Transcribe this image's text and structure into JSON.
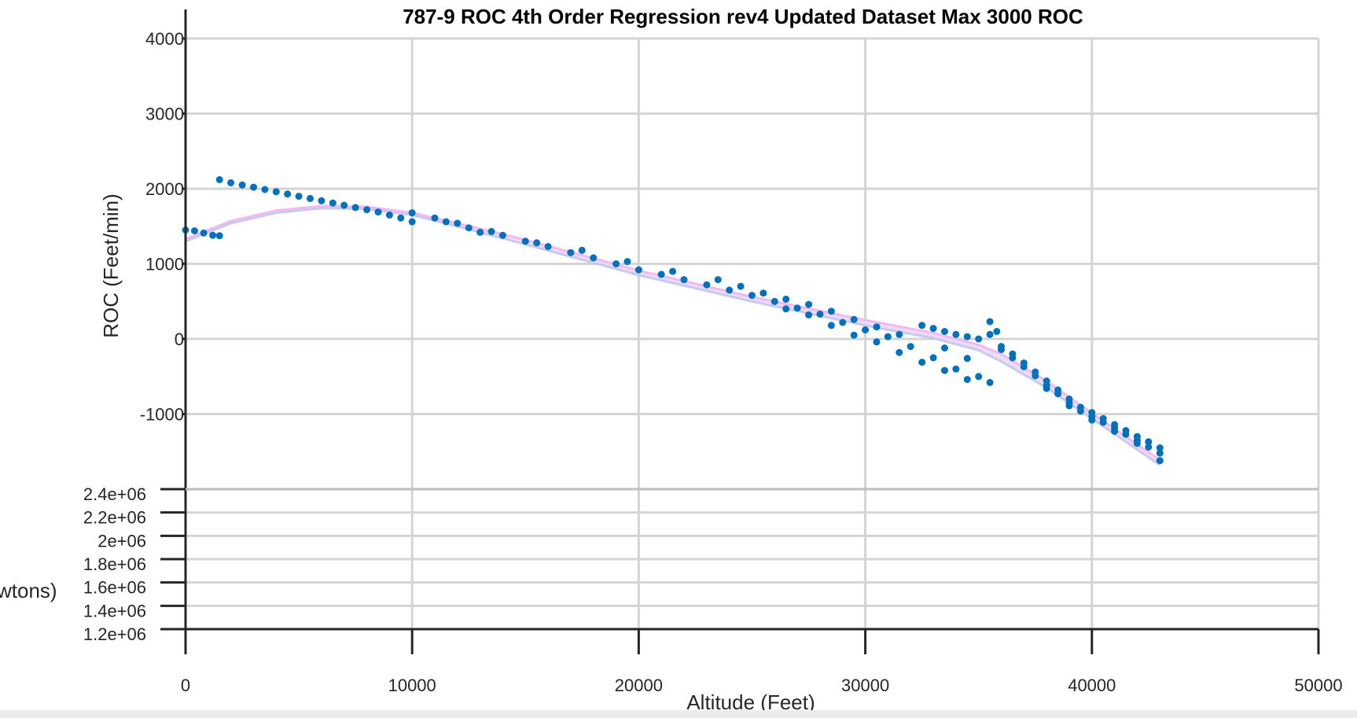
{
  "chart_data": {
    "type": "scatter",
    "title": "787-9 ROC 4th Order Regression rev4 Updated Dataset Max 3000 ROC",
    "xlabel": "Altitude (Feet)",
    "ylabel": "ROC (Feet/min)",
    "ylabel_lower": "wtons)",
    "xlim": [
      0,
      50000
    ],
    "ylim": [
      -2000,
      4000
    ],
    "ylim_lower": [
      1200000,
      2400000
    ],
    "x_ticks": [
      "0",
      "10000",
      "20000",
      "30000",
      "40000",
      "50000"
    ],
    "y_ticks": [
      "-1000",
      "0",
      "1000",
      "2000",
      "3000",
      "4000"
    ],
    "y_ticks_lower": [
      "1.2e+06",
      "1.4e+06",
      "1.6e+06",
      "1.8e+06",
      "2e+06",
      "2.2e+06",
      "2.4e+06"
    ],
    "grid": true,
    "colors": {
      "scatter": "#0072bd",
      "fit_upper": "#f2b8f2",
      "fit_lower": "#c9c9f0",
      "grid": "#d4d4d4",
      "axis": "#262626"
    },
    "series": [
      {
        "values": [
          [
            0,
            1450
          ],
          [
            400,
            1440
          ],
          [
            800,
            1410
          ],
          [
            1200,
            1380
          ],
          [
            1500,
            1375
          ],
          [
            1500,
            2120
          ],
          [
            2000,
            2080
          ],
          [
            2500,
            2050
          ],
          [
            3000,
            2020
          ],
          [
            3500,
            1990
          ],
          [
            4000,
            1960
          ],
          [
            4500,
            1930
          ],
          [
            5000,
            1900
          ],
          [
            5500,
            1870
          ],
          [
            6000,
            1840
          ],
          [
            6500,
            1810
          ],
          [
            7000,
            1780
          ],
          [
            7500,
            1750
          ],
          [
            8000,
            1720
          ],
          [
            8500,
            1690
          ],
          [
            9000,
            1650
          ],
          [
            9500,
            1610
          ],
          [
            10000,
            1560
          ],
          [
            10000,
            1680
          ],
          [
            11000,
            1610
          ],
          [
            12000,
            1540
          ],
          [
            12500,
            1480
          ],
          [
            13000,
            1420
          ],
          [
            14000,
            1380
          ],
          [
            15000,
            1300
          ],
          [
            16000,
            1230
          ],
          [
            17000,
            1150
          ],
          [
            18000,
            1080
          ],
          [
            19000,
            1000
          ],
          [
            20000,
            920
          ],
          [
            21000,
            860
          ],
          [
            22000,
            790
          ],
          [
            23000,
            720
          ],
          [
            24000,
            650
          ],
          [
            25000,
            580
          ],
          [
            26000,
            500
          ],
          [
            27000,
            410
          ],
          [
            28000,
            330
          ],
          [
            29000,
            220
          ],
          [
            30000,
            120
          ],
          [
            31000,
            30
          ],
          [
            32000,
            -100
          ],
          [
            33000,
            -250
          ],
          [
            34000,
            -400
          ],
          [
            35000,
            -500
          ],
          [
            35500,
            -580
          ],
          [
            11500,
            1560
          ],
          [
            13500,
            1430
          ],
          [
            15500,
            1280
          ],
          [
            17500,
            1180
          ],
          [
            19500,
            1030
          ],
          [
            21500,
            900
          ],
          [
            23500,
            790
          ],
          [
            24500,
            700
          ],
          [
            25500,
            610
          ],
          [
            26500,
            530
          ],
          [
            27500,
            460
          ],
          [
            28500,
            370
          ],
          [
            29500,
            260
          ],
          [
            30500,
            160
          ],
          [
            31500,
            60
          ],
          [
            33500,
            -120
          ],
          [
            34500,
            -260
          ],
          [
            26500,
            400
          ],
          [
            27500,
            320
          ],
          [
            28500,
            180
          ],
          [
            29500,
            50
          ],
          [
            30500,
            -40
          ],
          [
            31500,
            -180
          ],
          [
            32500,
            -310
          ],
          [
            33500,
            -420
          ],
          [
            34500,
            -540
          ],
          [
            32500,
            180
          ],
          [
            33000,
            140
          ],
          [
            33500,
            100
          ],
          [
            34000,
            60
          ],
          [
            34500,
            30
          ],
          [
            35000,
            0
          ],
          [
            35500,
            60
          ],
          [
            35500,
            230
          ],
          [
            35800,
            100
          ],
          [
            36000,
            -100
          ],
          [
            36500,
            -200
          ],
          [
            37000,
            -320
          ],
          [
            37500,
            -440
          ],
          [
            38000,
            -560
          ],
          [
            38500,
            -680
          ],
          [
            39000,
            -800
          ],
          [
            39500,
            -910
          ],
          [
            40000,
            -1030
          ],
          [
            40500,
            -1110
          ],
          [
            41000,
            -1190
          ],
          [
            41500,
            -1270
          ],
          [
            42000,
            -1350
          ],
          [
            42500,
            -1440
          ],
          [
            43000,
            -1520
          ],
          [
            36000,
            -140
          ],
          [
            36500,
            -250
          ],
          [
            37000,
            -370
          ],
          [
            37500,
            -490
          ],
          [
            38000,
            -620
          ],
          [
            38500,
            -730
          ],
          [
            39000,
            -850
          ],
          [
            39500,
            -960
          ],
          [
            40000,
            -980
          ],
          [
            40500,
            -1060
          ],
          [
            41000,
            -1140
          ],
          [
            41500,
            -1220
          ],
          [
            42000,
            -1300
          ],
          [
            42500,
            -1370
          ],
          [
            43000,
            -1450
          ],
          [
            38000,
            -660
          ],
          [
            39000,
            -890
          ],
          [
            40000,
            -1080
          ],
          [
            41000,
            -1230
          ],
          [
            42000,
            -1390
          ],
          [
            43000,
            -1620
          ]
        ]
      }
    ],
    "fit_upper": [
      [
        0,
        1330
      ],
      [
        2000,
        1570
      ],
      [
        4000,
        1710
      ],
      [
        6000,
        1770
      ],
      [
        8000,
        1760
      ],
      [
        10000,
        1680
      ],
      [
        12000,
        1540
      ],
      [
        15000,
        1320
      ],
      [
        20000,
        910
      ],
      [
        25000,
        560
      ],
      [
        30000,
        250
      ],
      [
        33000,
        80
      ],
      [
        35000,
        -80
      ],
      [
        36000,
        -200
      ],
      [
        38000,
        -560
      ],
      [
        40000,
        -990
      ],
      [
        43000,
        -1610
      ]
    ],
    "fit_lower": [
      [
        0,
        1300
      ],
      [
        2000,
        1540
      ],
      [
        4000,
        1680
      ],
      [
        6000,
        1740
      ],
      [
        8000,
        1730
      ],
      [
        10000,
        1650
      ],
      [
        12000,
        1500
      ],
      [
        15000,
        1260
      ],
      [
        20000,
        850
      ],
      [
        25000,
        500
      ],
      [
        30000,
        180
      ],
      [
        33000,
        10
      ],
      [
        35000,
        -150
      ],
      [
        36000,
        -300
      ],
      [
        38000,
        -650
      ],
      [
        40000,
        -1060
      ],
      [
        43000,
        -1680
      ]
    ]
  }
}
